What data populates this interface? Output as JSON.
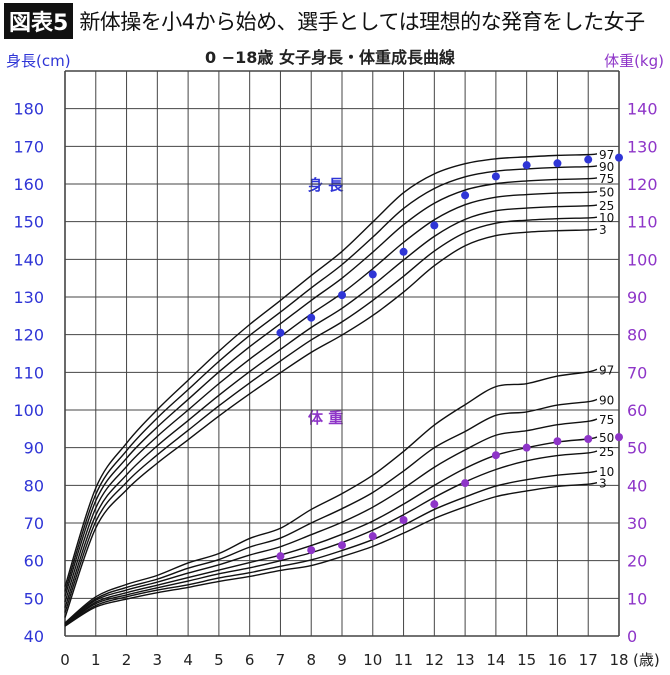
{
  "header": {
    "badge": "図表5",
    "headline": "新体操を小4から始め、選手としては理想的な発育をした女子"
  },
  "chart_data": {
    "type": "line",
    "title": "0 −18歳 女子身長・体重成長曲線",
    "xlabel": "(歳)",
    "ylabel_left": "身長(cm)",
    "ylabel_right": "体重(kg)",
    "xlim": [
      0,
      18
    ],
    "ylim_left": [
      40,
      190
    ],
    "ylim_right": [
      0,
      150
    ],
    "x_ticks": [
      0,
      1,
      2,
      3,
      4,
      5,
      6,
      7,
      8,
      9,
      10,
      11,
      12,
      13,
      14,
      15,
      16,
      17,
      18
    ],
    "y_ticks_left": [
      40,
      50,
      60,
      70,
      80,
      90,
      100,
      110,
      120,
      130,
      140,
      150,
      160,
      170,
      180
    ],
    "y_ticks_right": [
      0,
      10,
      20,
      30,
      40,
      50,
      60,
      70,
      80,
      90,
      100,
      110,
      120,
      130,
      140
    ],
    "grid": true,
    "colors": {
      "height": "#2f35d6",
      "weight": "#8e35c8",
      "curve": "#111111",
      "left_axis": "#2f35d6",
      "right_axis": "#8e35c8"
    },
    "height_label": "身 長",
    "weight_label": "体 重",
    "ages": [
      0,
      1,
      2,
      3,
      4,
      5,
      6,
      7,
      8,
      9,
      10,
      11,
      12,
      13,
      14,
      15,
      16,
      17,
      18
    ],
    "height_percentiles": [
      {
        "name": "3",
        "values": [
          44.9,
          68.7,
          78.8,
          85.9,
          92.1,
          98.4,
          104.3,
          109.9,
          115.3,
          119.9,
          125.1,
          131.3,
          138.3,
          143.6,
          146.3,
          147.2,
          147.6,
          147.8,
          148
        ]
      },
      {
        "name": "10",
        "values": [
          46.2,
          70.4,
          80.8,
          88.1,
          94.6,
          101.1,
          107.2,
          113,
          118.6,
          123.4,
          129.1,
          135.5,
          142.2,
          147.1,
          149.6,
          150.4,
          150.8,
          151,
          151.2
        ]
      },
      {
        "name": "25",
        "values": [
          47.5,
          72.1,
          82.8,
          90.5,
          97.2,
          103.9,
          110.2,
          116.1,
          121.9,
          127,
          133.1,
          139.8,
          146.1,
          150.6,
          152.9,
          153.6,
          154,
          154.2,
          154.4
        ]
      },
      {
        "name": "50",
        "values": [
          49,
          74,
          85,
          93,
          100,
          107,
          113.5,
          119.5,
          125.5,
          131,
          137.5,
          144.5,
          150.5,
          154.5,
          156.5,
          157.2,
          157.6,
          157.8,
          158
        ]
      },
      {
        "name": "75",
        "values": [
          50.5,
          75.9,
          87.2,
          95.5,
          102.8,
          110.1,
          116.8,
          122.9,
          129.1,
          135,
          141.9,
          149.2,
          154.9,
          158.4,
          160.1,
          160.8,
          161.2,
          161.4,
          161.6
        ]
      },
      {
        "name": "90",
        "values": [
          51.8,
          77.6,
          89.2,
          97.9,
          105.4,
          112.9,
          119.8,
          126,
          132.4,
          138.6,
          145.9,
          153.5,
          158.8,
          161.9,
          163.4,
          164,
          164.4,
          164.6,
          164.8
        ]
      },
      {
        "name": "97",
        "values": [
          53.1,
          79.3,
          91.2,
          100.1,
          107.9,
          115.6,
          122.7,
          129.1,
          135.7,
          142.1,
          149.9,
          157.7,
          162.7,
          165.4,
          166.7,
          167.2,
          167.6,
          167.8,
          168
        ]
      }
    ],
    "weight_percentiles": [
      {
        "name": "3",
        "values": [
          2.6,
          7.7,
          9.8,
          11.5,
          12.9,
          14.5,
          15.8,
          17.4,
          18.7,
          21.1,
          23.8,
          27.3,
          31.2,
          34.3,
          37,
          38.5,
          39.7,
          40.3,
          40.7
        ]
      },
      {
        "name": "10",
        "values": [
          2.7,
          8.1,
          10.4,
          12.2,
          13.6,
          15.4,
          16.8,
          18.5,
          20.2,
          22.7,
          25.6,
          29.4,
          33.6,
          36.9,
          39.8,
          41.5,
          42.7,
          43.4,
          43.8
        ]
      },
      {
        "name": "25",
        "values": [
          2.9,
          8.6,
          10.9,
          12.8,
          14.6,
          16.5,
          18.1,
          20,
          22.1,
          24.8,
          28.1,
          32.2,
          36.8,
          40.9,
          44.2,
          46.5,
          47.9,
          48.6,
          49.1
        ]
      },
      {
        "name": "50",
        "values": [
          3,
          9,
          11.5,
          13.5,
          15.5,
          17.5,
          19.5,
          21.5,
          24,
          27,
          30.5,
          35,
          40,
          44.5,
          48,
          50,
          51.5,
          52.3,
          52.8
        ]
      },
      {
        "name": "75",
        "values": [
          3.2,
          9.5,
          12.2,
          14.3,
          16.7,
          18.9,
          21.5,
          23.7,
          26.9,
          30.2,
          34.2,
          39.2,
          44.8,
          49.4,
          53.3,
          54.5,
          56.1,
          57,
          57.6
        ]
      },
      {
        "name": "90",
        "values": [
          3.3,
          9.9,
          12.9,
          15.1,
          18,
          20.3,
          23.6,
          26,
          30,
          33.8,
          38.1,
          43.8,
          50,
          54.3,
          58.6,
          59.5,
          61.3,
          62.2,
          62.8
        ]
      },
      {
        "name": "97",
        "values": [
          3.5,
          10.4,
          13.7,
          16.1,
          19.4,
          21.9,
          25.9,
          28.6,
          33.6,
          37.8,
          42.7,
          49,
          56,
          61.4,
          66.2,
          67,
          69,
          70.1,
          70.8
        ]
      }
    ],
    "subject_height": {
      "ages": [
        7,
        8,
        9,
        10,
        11,
        12,
        13,
        14,
        15,
        16,
        17,
        18
      ],
      "values": [
        120.5,
        124.5,
        130.5,
        136,
        142,
        149,
        157,
        162,
        165,
        165.5,
        166.5,
        167
      ]
    },
    "subject_weight": {
      "ages": [
        7,
        8,
        9,
        10,
        11,
        12,
        13,
        14,
        15,
        16,
        17,
        18
      ],
      "values": [
        21.2,
        22.8,
        24.1,
        26.5,
        30.8,
        35,
        40.6,
        48,
        50,
        51.7,
        52.3,
        52.8
      ]
    }
  }
}
